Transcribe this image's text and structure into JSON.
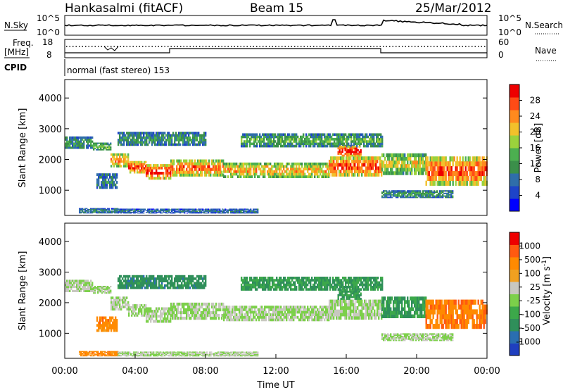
{
  "header": {
    "radar": "Hankasalmi (fitACF)",
    "beam": "Beam 15",
    "date": "25/Mar/2012"
  },
  "aux": {
    "nsky_label": "N.Sky",
    "nsky_ticks": [
      "10^5",
      "10^0"
    ],
    "nsearch_label": "N.Search",
    "nsearch_ticks": [
      "10^5",
      "10^0"
    ],
    "freq_label": "Freq.",
    "freq_unit": "[MHz]",
    "freq_ticks": [
      "18",
      "8"
    ],
    "nave_label": "Nave",
    "nave_ticks": [
      "60",
      "0"
    ],
    "cpid_label": "CPID",
    "cpid_text": "normal (fast stereo) 153"
  },
  "chart_data": [
    {
      "type": "heatmap",
      "name": "power",
      "ylabel": "Slant Range [km]",
      "yticks": [
        "4000",
        "3000",
        "2000",
        "1000"
      ],
      "ylim": [
        180,
        4600
      ],
      "xlim": [
        0,
        24
      ],
      "colorbar": {
        "label": "Power [dB]",
        "ticks": [
          "28",
          "24",
          "20",
          "16",
          "12",
          "8",
          "4"
        ],
        "colors": [
          "#0000ff",
          "#1e44c8",
          "#2f6eaa",
          "#3b8f4a",
          "#4caf50",
          "#9bd23c",
          "#f2c12b",
          "#ff8a1e",
          "#ff4b16",
          "#ee0000"
        ]
      },
      "bands": [
        {
          "start": 0.0,
          "end": 1.6,
          "lo": 2350,
          "hi": 2750,
          "level": 0.35
        },
        {
          "start": 1.6,
          "end": 2.6,
          "lo": 2300,
          "hi": 2550,
          "level": 0.45
        },
        {
          "start": 2.6,
          "end": 3.6,
          "lo": 1750,
          "hi": 2200,
          "level": 0.7
        },
        {
          "start": 3.6,
          "end": 4.6,
          "lo": 1550,
          "hi": 1950,
          "level": 0.8
        },
        {
          "start": 4.6,
          "end": 6.0,
          "lo": 1350,
          "hi": 1850,
          "level": 0.85
        },
        {
          "start": 6.0,
          "end": 9.0,
          "lo": 1450,
          "hi": 2000,
          "level": 0.75
        },
        {
          "start": 9.0,
          "end": 12.0,
          "lo": 1400,
          "hi": 1900,
          "level": 0.65
        },
        {
          "start": 12.0,
          "end": 15.0,
          "lo": 1400,
          "hi": 1900,
          "level": 0.65
        },
        {
          "start": 15.0,
          "end": 18.0,
          "lo": 1450,
          "hi": 2100,
          "level": 0.8
        },
        {
          "start": 18.0,
          "end": 20.5,
          "lo": 1500,
          "hi": 2200,
          "level": 0.55
        },
        {
          "start": 20.5,
          "end": 24.0,
          "lo": 1150,
          "hi": 2100,
          "level": 0.8
        },
        {
          "start": 1.8,
          "end": 3.0,
          "lo": 1050,
          "hi": 1550,
          "level": 0.3
        },
        {
          "start": 3.0,
          "end": 8.0,
          "lo": 2450,
          "hi": 2900,
          "level": 0.35
        },
        {
          "start": 10.0,
          "end": 18.0,
          "lo": 2400,
          "hi": 2850,
          "level": 0.4
        },
        {
          "start": 15.5,
          "end": 16.8,
          "lo": 2100,
          "hi": 2450,
          "level": 0.9
        },
        {
          "start": 18.0,
          "end": 22.0,
          "lo": 750,
          "hi": 1000,
          "level": 0.35
        },
        {
          "start": 0.8,
          "end": 3.0,
          "lo": 250,
          "hi": 420,
          "level": 0.3
        },
        {
          "start": 3.0,
          "end": 11.0,
          "lo": 250,
          "hi": 400,
          "level": 0.25
        }
      ]
    },
    {
      "type": "heatmap",
      "name": "velocity",
      "xlabel": "Time UT",
      "ylabel": "Slant Range [km]",
      "yticks": [
        "4000",
        "3000",
        "2000",
        "1000"
      ],
      "xticks": [
        "00:00",
        "04:00",
        "08:00",
        "12:00",
        "16:00",
        "20:00",
        "00:00"
      ],
      "ylim": [
        180,
        4600
      ],
      "xlim": [
        0,
        24
      ],
      "colorbar": {
        "label": "Velocity [m s",
        "label_sup": "-1",
        "label_end": "]",
        "ticks": [
          "1000",
          "500",
          "100",
          "25",
          "-25",
          "-100",
          "-500",
          "-1000"
        ],
        "colors": [
          "#1f3fbf",
          "#2a6eb0",
          "#2f8f5a",
          "#3ca84a",
          "#7cd04a",
          "#c8c8c0",
          "#f0a020",
          "#ff8a00",
          "#ff5a10",
          "#ee0000"
        ]
      },
      "bands": [
        {
          "start": 0.0,
          "end": 1.6,
          "lo": 2350,
          "hi": 2750,
          "level": 0.5
        },
        {
          "start": 1.6,
          "end": 2.6,
          "lo": 2300,
          "hi": 2550,
          "level": 0.5
        },
        {
          "start": 2.6,
          "end": 3.6,
          "lo": 1750,
          "hi": 2200,
          "level": 0.5
        },
        {
          "start": 3.6,
          "end": 4.6,
          "lo": 1550,
          "hi": 1950,
          "level": 0.5
        },
        {
          "start": 4.6,
          "end": 6.0,
          "lo": 1350,
          "hi": 1850,
          "level": 0.5
        },
        {
          "start": 6.0,
          "end": 9.0,
          "lo": 1450,
          "hi": 2000,
          "level": 0.5
        },
        {
          "start": 9.0,
          "end": 12.0,
          "lo": 1400,
          "hi": 1900,
          "level": 0.5
        },
        {
          "start": 12.0,
          "end": 15.0,
          "lo": 1400,
          "hi": 1900,
          "level": 0.5
        },
        {
          "start": 15.0,
          "end": 18.0,
          "lo": 1450,
          "hi": 2100,
          "level": 0.5
        },
        {
          "start": 18.0,
          "end": 20.5,
          "lo": 1500,
          "hi": 2200,
          "level": 0.3
        },
        {
          "start": 20.5,
          "end": 24.0,
          "lo": 1150,
          "hi": 2100,
          "level": 0.78
        },
        {
          "start": 1.8,
          "end": 3.0,
          "lo": 1050,
          "hi": 1550,
          "level": 0.75
        },
        {
          "start": 3.0,
          "end": 8.0,
          "lo": 2450,
          "hi": 2900,
          "level": 0.25
        },
        {
          "start": 10.0,
          "end": 18.0,
          "lo": 2400,
          "hi": 2850,
          "level": 0.3
        },
        {
          "start": 15.5,
          "end": 16.8,
          "lo": 2100,
          "hi": 2450,
          "level": 0.3
        },
        {
          "start": 18.0,
          "end": 22.0,
          "lo": 750,
          "hi": 1000,
          "level": 0.5
        },
        {
          "start": 0.8,
          "end": 3.0,
          "lo": 250,
          "hi": 420,
          "level": 0.75
        },
        {
          "start": 3.0,
          "end": 11.0,
          "lo": 250,
          "hi": 400,
          "level": 0.5
        }
      ]
    }
  ]
}
